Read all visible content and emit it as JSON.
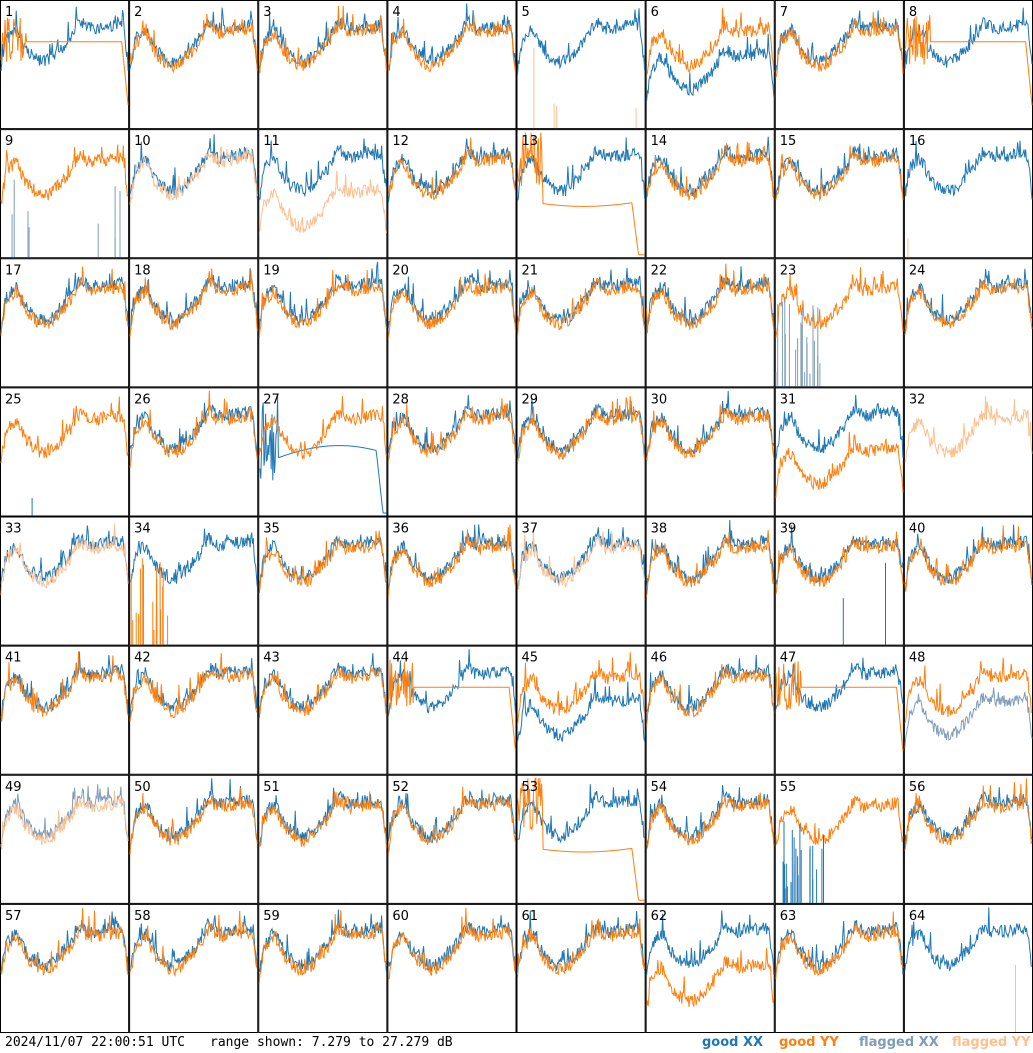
{
  "chart_data": {
    "type": "line",
    "grid": {
      "rows": 8,
      "cols": 8
    },
    "panels": [
      "1",
      "2",
      "3",
      "4",
      "5",
      "6",
      "7",
      "8",
      "9",
      "10",
      "11",
      "12",
      "13",
      "14",
      "15",
      "16",
      "17",
      "18",
      "19",
      "20",
      "21",
      "22",
      "23",
      "24",
      "25",
      "26",
      "27",
      "28",
      "29",
      "30",
      "31",
      "32",
      "33",
      "34",
      "35",
      "36",
      "37",
      "38",
      "39",
      "40",
      "41",
      "42",
      "43",
      "44",
      "45",
      "46",
      "47",
      "48",
      "49",
      "50",
      "51",
      "52",
      "53",
      "54",
      "55",
      "56",
      "57",
      "58",
      "59",
      "60",
      "61",
      "62",
      "63",
      "64"
    ],
    "series": [
      {
        "name": "good XX",
        "color": "#1f77b4"
      },
      {
        "name": "good YY",
        "color": "#ff7f0e"
      },
      {
        "name": "flagged XX",
        "color": "#7f9db8"
      },
      {
        "name": "flagged YY",
        "color": "#ffbf8f"
      }
    ],
    "panel_styles": {
      "1": "xx-flat-yy-decay",
      "5": "xx-only-spikes",
      "6": "xx-low",
      "8": "yy-flat",
      "9": "flagged-xx-spikes",
      "10": "flagged-yy",
      "11": "flagged-yy-low",
      "13": "yy-decay",
      "16": "xx-only-spike",
      "23": "flagged-xx-noise",
      "25": "yy-only-spike",
      "27": "xx-decay-wide",
      "31": "yy-low",
      "32": "flagged-yy-noisy",
      "33": "flagged-yy",
      "34": "yy-noise",
      "37": "flagged-yy",
      "39": "xx-spike",
      "44": "yy-flat",
      "45": "xx-low",
      "47": "yy-flat",
      "48": "flagged-xx-low",
      "49": "flagged-both",
      "53": "yy-decay-wide",
      "55": "xx-noise",
      "62": "yy-low-flat",
      "64": "xx-only-spike"
    },
    "footer": {
      "timestamp": "2024/11/07 22:00:51 UTC",
      "range_text": "range shown: 7.279 to 27.279 dB"
    },
    "range_db": [
      7.279,
      27.279
    ]
  }
}
